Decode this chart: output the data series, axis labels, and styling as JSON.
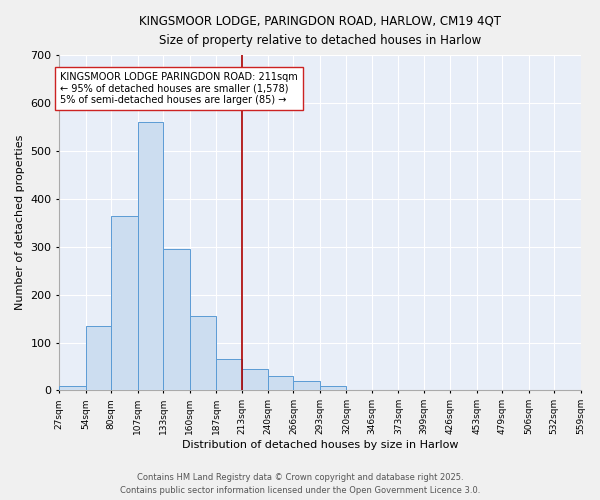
{
  "title_line1": "KINGSMOOR LODGE, PARINGDON ROAD, HARLOW, CM19 4QT",
  "title_line2": "Size of property relative to detached houses in Harlow",
  "xlabel": "Distribution of detached houses by size in Harlow",
  "ylabel": "Number of detached properties",
  "bar_edges": [
    27,
    54,
    80,
    107,
    133,
    160,
    187,
    213,
    240,
    266,
    293,
    320,
    346,
    373,
    399,
    426,
    453,
    479,
    506,
    532,
    559
  ],
  "bar_heights": [
    10,
    135,
    365,
    560,
    295,
    155,
    65,
    45,
    30,
    20,
    10,
    0,
    0,
    0,
    0,
    0,
    0,
    0,
    0,
    0
  ],
  "bar_color": "#ccddf0",
  "bar_edgecolor": "#5b9bd5",
  "vline_x": 213,
  "vline_color": "#aa0000",
  "ylim": [
    0,
    700
  ],
  "yticks": [
    0,
    100,
    200,
    300,
    400,
    500,
    600,
    700
  ],
  "bg_color": "#e8eef8",
  "grid_color": "#ffffff",
  "annotation_text": "KINGSMOOR LODGE PARINGDON ROAD: 211sqm\n← 95% of detached houses are smaller (1,578)\n5% of semi-detached houses are larger (85) →",
  "footer_line1": "Contains HM Land Registry data © Crown copyright and database right 2025.",
  "footer_line2": "Contains public sector information licensed under the Open Government Licence 3.0."
}
